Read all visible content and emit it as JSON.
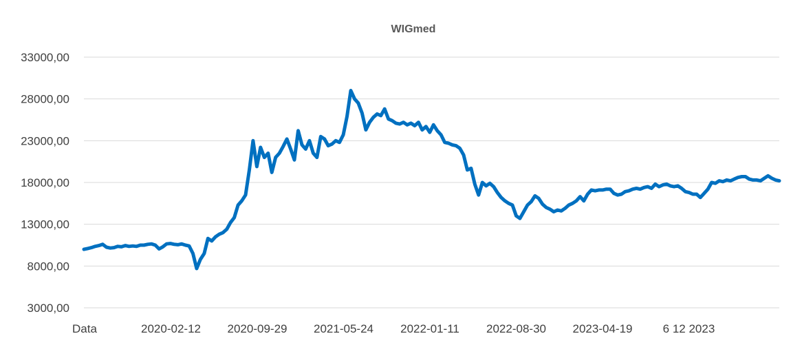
{
  "chart_data": {
    "type": "line",
    "title": "WIGmed",
    "xlabel": "",
    "ylabel": "",
    "ylim": [
      3000,
      33000
    ],
    "yticks": [
      "3000,00",
      "8000,00",
      "13000,00",
      "18000,00",
      "23000,00",
      "28000,00",
      "33000,00"
    ],
    "ytick_values": [
      3000,
      8000,
      13000,
      18000,
      23000,
      28000,
      33000
    ],
    "xticks": [
      "Data",
      "2020-02-12",
      "2020-09-29",
      "2021-05-24",
      "2022-01-11",
      "2022-08-30",
      "2023-04-19",
      "6 12 2023"
    ],
    "grid": true,
    "legend": "none",
    "colors": {
      "line": "#0070c0",
      "grid": "#d9d9d9",
      "text": "#404040",
      "title": "#595959"
    },
    "series": [
      {
        "values": [
          10000,
          10100,
          10200,
          10350,
          10450,
          10600,
          10250,
          10150,
          10200,
          10350,
          10300,
          10450,
          10350,
          10400,
          10350,
          10500,
          10500,
          10600,
          10650,
          10500,
          10050,
          10300,
          10650,
          10700,
          10600,
          10550,
          10650,
          10500,
          10400,
          9500,
          7700,
          8800,
          9500,
          11300,
          11000,
          11500,
          11800,
          12000,
          12400,
          13200,
          13800,
          15300,
          15800,
          16500,
          19500,
          23000,
          19900,
          22200,
          21000,
          21500,
          19200,
          21000,
          21500,
          22300,
          23200,
          22000,
          20700,
          24200,
          22500,
          22000,
          23000,
          21500,
          21000,
          23500,
          23200,
          22400,
          22600,
          23000,
          22800,
          23700,
          25900,
          29000,
          28000,
          27500,
          26300,
          24300,
          25200,
          25800,
          26200,
          26000,
          26800,
          25600,
          25400,
          25100,
          25000,
          25200,
          24900,
          25100,
          24800,
          25200,
          24300,
          24700,
          24000,
          24900,
          24200,
          23700,
          22800,
          22700,
          22500,
          22400,
          22100,
          21300,
          19500,
          19700,
          17800,
          16500,
          18000,
          17600,
          17900,
          17500,
          16800,
          16200,
          15800,
          15500,
          15300,
          14000,
          13700,
          14500,
          15300,
          15700,
          16400,
          16100,
          15400,
          15000,
          14800,
          14500,
          14700,
          14600,
          14900,
          15300,
          15500,
          15800,
          16300,
          15800,
          16600,
          17100,
          17000,
          17100,
          17100,
          17200,
          17200,
          16700,
          16500,
          16600,
          16900,
          17000,
          17200,
          17300,
          17200,
          17400,
          17500,
          17300,
          17800,
          17500,
          17700,
          17800,
          17600,
          17500,
          17600,
          17300,
          16900,
          16800,
          16600,
          16600,
          16200,
          16700,
          17200,
          18000,
          17900,
          18200,
          18100,
          18300,
          18200,
          18400,
          18600,
          18700,
          18700,
          18400,
          18300,
          18300,
          18200,
          18500,
          18800,
          18500,
          18300,
          18200
        ]
      }
    ]
  }
}
